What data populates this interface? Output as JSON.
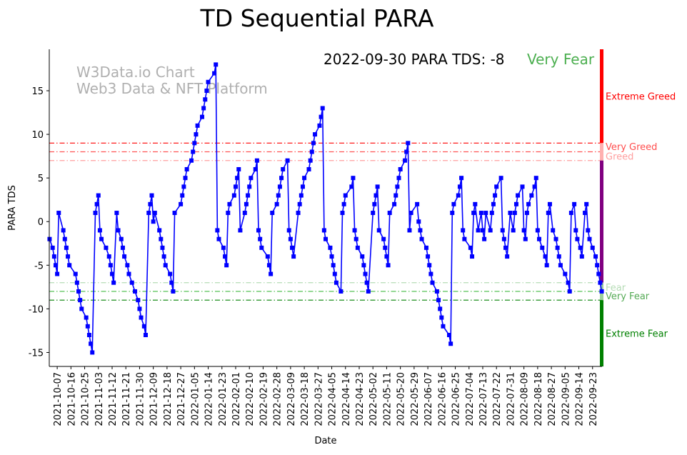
{
  "chart_data": {
    "type": "line",
    "title": "TD Sequential PARA",
    "xlabel": "Date",
    "ylabel": "PARA TDS",
    "ylim": [
      -16.6,
      19.75
    ],
    "xlim_days": [
      -0.2,
      362.2
    ],
    "x_unit": "days since first data point",
    "y_ticks": [
      -15,
      -10,
      -5,
      0,
      5,
      10,
      15
    ],
    "x_tick_first_day": 5,
    "x_tick_step_days": 9,
    "x_tick_labels": [
      "2021-10-07",
      "2021-10-16",
      "2021-10-25",
      "2021-11-03",
      "2021-11-12",
      "2021-11-21",
      "2021-11-30",
      "2021-12-09",
      "2021-12-18",
      "2021-12-27",
      "2022-01-05",
      "2022-01-14",
      "2022-01-23",
      "2022-02-01",
      "2022-02-10",
      "2022-02-19",
      "2022-02-28",
      "2022-03-09",
      "2022-03-18",
      "2022-03-27",
      "2022-04-05",
      "2022-04-14",
      "2022-04-23",
      "2022-05-02",
      "2022-05-11",
      "2022-05-20",
      "2022-05-29",
      "2022-06-07",
      "2022-06-16",
      "2022-06-25",
      "2022-07-04",
      "2022-07-13",
      "2022-07-22",
      "2022-07-31",
      "2022-08-09",
      "2022-08-18",
      "2022-08-27",
      "2022-09-05",
      "2022-09-14",
      "2022-09-23"
    ],
    "annotation": {
      "text": "2022-09-30 PARA TDS: -8",
      "status": "Very Fear",
      "status_color": "#4caf50"
    },
    "watermark": [
      "W3Data.io Chart",
      "Web3 Data & NFT Platform"
    ],
    "thresholds": [
      {
        "value": 9,
        "label": "Very Greed",
        "color": "#ff0000",
        "label_color": "#ff4d4d",
        "label_value": 8.6
      },
      {
        "value": 8,
        "label": "",
        "color": "#ff5555"
      },
      {
        "value": 7,
        "label": "Greed",
        "color": "#ffa0a0",
        "label_color": "#ffa0a0",
        "label_value": 7.5
      },
      {
        "value": -7,
        "label": "Fear",
        "color": "#b5dcb5",
        "label_color": "#b5dcb5",
        "label_value": -7.5
      },
      {
        "value": -8,
        "label": "Very Fear",
        "color": "#44bb44",
        "label_color": "#55aa55",
        "label_value": -8.5
      },
      {
        "value": -9,
        "label": "",
        "color": "#008000"
      }
    ],
    "zone_labels": [
      {
        "label": "Extreme Greed",
        "value": 14.4,
        "color": "#ff0000"
      },
      {
        "label": "Extreme Fear",
        "value": -12.8,
        "color": "#008000"
      }
    ],
    "zone_bar": [
      {
        "from": 9,
        "to": 19.75,
        "color": "#ff0000"
      },
      {
        "from": 7,
        "to": 9,
        "color": "#ffb0b0"
      },
      {
        "from": -7,
        "to": 7,
        "color": "#800080"
      },
      {
        "from": -9,
        "to": -7,
        "color": "#9ccf9c"
      },
      {
        "from": -16.6,
        "to": -9,
        "color": "#008000"
      }
    ],
    "series": [
      {
        "name": "PARA TDS",
        "color": "#0000ff",
        "points": [
          [
            0,
            -2
          ],
          [
            2,
            -3
          ],
          [
            3,
            -4
          ],
          [
            4,
            -5
          ],
          [
            5,
            -6
          ],
          [
            6,
            1
          ],
          [
            9,
            -1
          ],
          [
            10,
            -2
          ],
          [
            11,
            -3
          ],
          [
            12,
            -4
          ],
          [
            13,
            -5
          ],
          [
            17,
            -6
          ],
          [
            18,
            -7
          ],
          [
            19,
            -8
          ],
          [
            20,
            -9
          ],
          [
            21,
            -10
          ],
          [
            24,
            -11
          ],
          [
            25,
            -12
          ],
          [
            26,
            -13
          ],
          [
            27,
            -14
          ],
          [
            28,
            -15
          ],
          [
            30,
            1
          ],
          [
            31,
            2
          ],
          [
            32,
            3
          ],
          [
            33,
            -1
          ],
          [
            34,
            -2
          ],
          [
            37,
            -3
          ],
          [
            39,
            -4
          ],
          [
            40,
            -5
          ],
          [
            41,
            -6
          ],
          [
            42,
            -7
          ],
          [
            44,
            1
          ],
          [
            45,
            -1
          ],
          [
            47,
            -2
          ],
          [
            48,
            -3
          ],
          [
            49,
            -4
          ],
          [
            51,
            -5
          ],
          [
            52,
            -6
          ],
          [
            54,
            -7
          ],
          [
            56,
            -8
          ],
          [
            58,
            -9
          ],
          [
            59,
            -10
          ],
          [
            60,
            -11
          ],
          [
            62,
            -12
          ],
          [
            63,
            -13
          ],
          [
            65,
            1
          ],
          [
            66,
            2
          ],
          [
            67,
            3
          ],
          [
            68,
            0
          ],
          [
            69,
            1
          ],
          [
            72,
            -1
          ],
          [
            73,
            -2
          ],
          [
            74,
            -3
          ],
          [
            75,
            -4
          ],
          [
            76,
            -5
          ],
          [
            79,
            -6
          ],
          [
            80,
            -7
          ],
          [
            81,
            -8
          ],
          [
            82,
            1
          ],
          [
            86,
            2
          ],
          [
            87,
            3
          ],
          [
            88,
            4
          ],
          [
            89,
            5
          ],
          [
            90,
            6
          ],
          [
            93,
            7
          ],
          [
            94,
            8
          ],
          [
            95,
            9
          ],
          [
            96,
            10
          ],
          [
            97,
            11
          ],
          [
            100,
            12
          ],
          [
            101,
            13
          ],
          [
            102,
            14
          ],
          [
            103,
            15
          ],
          [
            104,
            16
          ],
          [
            108,
            17
          ],
          [
            109,
            18
          ],
          [
            110,
            -1
          ],
          [
            111,
            -2
          ],
          [
            114,
            -3
          ],
          [
            115,
            -4
          ],
          [
            116,
            -5
          ],
          [
            117,
            1
          ],
          [
            118,
            2
          ],
          [
            121,
            3
          ],
          [
            122,
            4
          ],
          [
            123,
            5
          ],
          [
            124,
            6
          ],
          [
            125,
            -1
          ],
          [
            128,
            1
          ],
          [
            129,
            2
          ],
          [
            130,
            3
          ],
          [
            131,
            4
          ],
          [
            132,
            5
          ],
          [
            135,
            6
          ],
          [
            136,
            7
          ],
          [
            137,
            -1
          ],
          [
            138,
            -2
          ],
          [
            139,
            -3
          ],
          [
            143,
            -4
          ],
          [
            144,
            -5
          ],
          [
            145,
            -6
          ],
          [
            146,
            1
          ],
          [
            149,
            2
          ],
          [
            150,
            3
          ],
          [
            151,
            4
          ],
          [
            152,
            5
          ],
          [
            153,
            6
          ],
          [
            156,
            7
          ],
          [
            157,
            -1
          ],
          [
            158,
            -2
          ],
          [
            159,
            -3
          ],
          [
            160,
            -4
          ],
          [
            163,
            1
          ],
          [
            164,
            2
          ],
          [
            165,
            3
          ],
          [
            166,
            4
          ],
          [
            167,
            5
          ],
          [
            170,
            6
          ],
          [
            171,
            7
          ],
          [
            172,
            8
          ],
          [
            173,
            9
          ],
          [
            174,
            10
          ],
          [
            177,
            11
          ],
          [
            178,
            12
          ],
          [
            179,
            13
          ],
          [
            180,
            -1
          ],
          [
            181,
            -2
          ],
          [
            184,
            -3
          ],
          [
            185,
            -4
          ],
          [
            186,
            -5
          ],
          [
            187,
            -6
          ],
          [
            188,
            -7
          ],
          [
            191,
            -8
          ],
          [
            192,
            1
          ],
          [
            193,
            2
          ],
          [
            194,
            3
          ],
          [
            198,
            4
          ],
          [
            199,
            5
          ],
          [
            200,
            -1
          ],
          [
            201,
            -2
          ],
          [
            202,
            -3
          ],
          [
            205,
            -4
          ],
          [
            206,
            -5
          ],
          [
            207,
            -6
          ],
          [
            208,
            -7
          ],
          [
            209,
            -8
          ],
          [
            212,
            1
          ],
          [
            213,
            2
          ],
          [
            214,
            3
          ],
          [
            215,
            4
          ],
          [
            216,
            -1
          ],
          [
            219,
            -2
          ],
          [
            220,
            -3
          ],
          [
            221,
            -4
          ],
          [
            222,
            -5
          ],
          [
            223,
            1
          ],
          [
            226,
            2
          ],
          [
            227,
            3
          ],
          [
            228,
            4
          ],
          [
            229,
            5
          ],
          [
            230,
            6
          ],
          [
            233,
            7
          ],
          [
            234,
            8
          ],
          [
            235,
            9
          ],
          [
            236,
            -1
          ],
          [
            237,
            1
          ],
          [
            241,
            2
          ],
          [
            242,
            0
          ],
          [
            243,
            -1
          ],
          [
            244,
            -2
          ],
          [
            247,
            -3
          ],
          [
            248,
            -4
          ],
          [
            249,
            -5
          ],
          [
            250,
            -6
          ],
          [
            251,
            -7
          ],
          [
            254,
            -8
          ],
          [
            255,
            -9
          ],
          [
            256,
            -10
          ],
          [
            257,
            -11
          ],
          [
            258,
            -12
          ],
          [
            262,
            -13
          ],
          [
            263,
            -14
          ],
          [
            264,
            1
          ],
          [
            265,
            2
          ],
          [
            268,
            3
          ],
          [
            269,
            4
          ],
          [
            270,
            5
          ],
          [
            271,
            -1
          ],
          [
            272,
            -2
          ],
          [
            276,
            -3
          ],
          [
            277,
            -4
          ],
          [
            278,
            1
          ],
          [
            279,
            2
          ],
          [
            281,
            -1
          ],
          [
            283,
            1
          ],
          [
            284,
            -1
          ],
          [
            285,
            -2
          ],
          [
            286,
            1
          ],
          [
            289,
            -1
          ],
          [
            290,
            1
          ],
          [
            291,
            2
          ],
          [
            292,
            3
          ],
          [
            293,
            4
          ],
          [
            296,
            5
          ],
          [
            297,
            -1
          ],
          [
            298,
            -2
          ],
          [
            299,
            -3
          ],
          [
            300,
            -4
          ],
          [
            302,
            1
          ],
          [
            304,
            -1
          ],
          [
            305,
            1
          ],
          [
            306,
            2
          ],
          [
            307,
            3
          ],
          [
            310,
            4
          ],
          [
            311,
            -1
          ],
          [
            312,
            -2
          ],
          [
            313,
            1
          ],
          [
            314,
            2
          ],
          [
            316,
            3
          ],
          [
            318,
            4
          ],
          [
            319,
            5
          ],
          [
            320,
            -1
          ],
          [
            321,
            -2
          ],
          [
            323,
            -3
          ],
          [
            325,
            -4
          ],
          [
            326,
            -5
          ],
          [
            327,
            1
          ],
          [
            328,
            2
          ],
          [
            330,
            -1
          ],
          [
            332,
            -2
          ],
          [
            333,
            -3
          ],
          [
            334,
            -4
          ],
          [
            335,
            -5
          ],
          [
            338,
            -6
          ],
          [
            340,
            -7
          ],
          [
            341,
            -8
          ],
          [
            342,
            1
          ],
          [
            344,
            2
          ],
          [
            345,
            -1
          ],
          [
            346,
            -2
          ],
          [
            348,
            -3
          ],
          [
            349,
            -4
          ],
          [
            351,
            1
          ],
          [
            352,
            2
          ],
          [
            353,
            -1
          ],
          [
            354,
            -2
          ],
          [
            356,
            -3
          ],
          [
            358,
            -4
          ],
          [
            359,
            -5
          ],
          [
            360,
            -6
          ],
          [
            361,
            -7
          ],
          [
            362,
            -8
          ]
        ]
      }
    ]
  }
}
